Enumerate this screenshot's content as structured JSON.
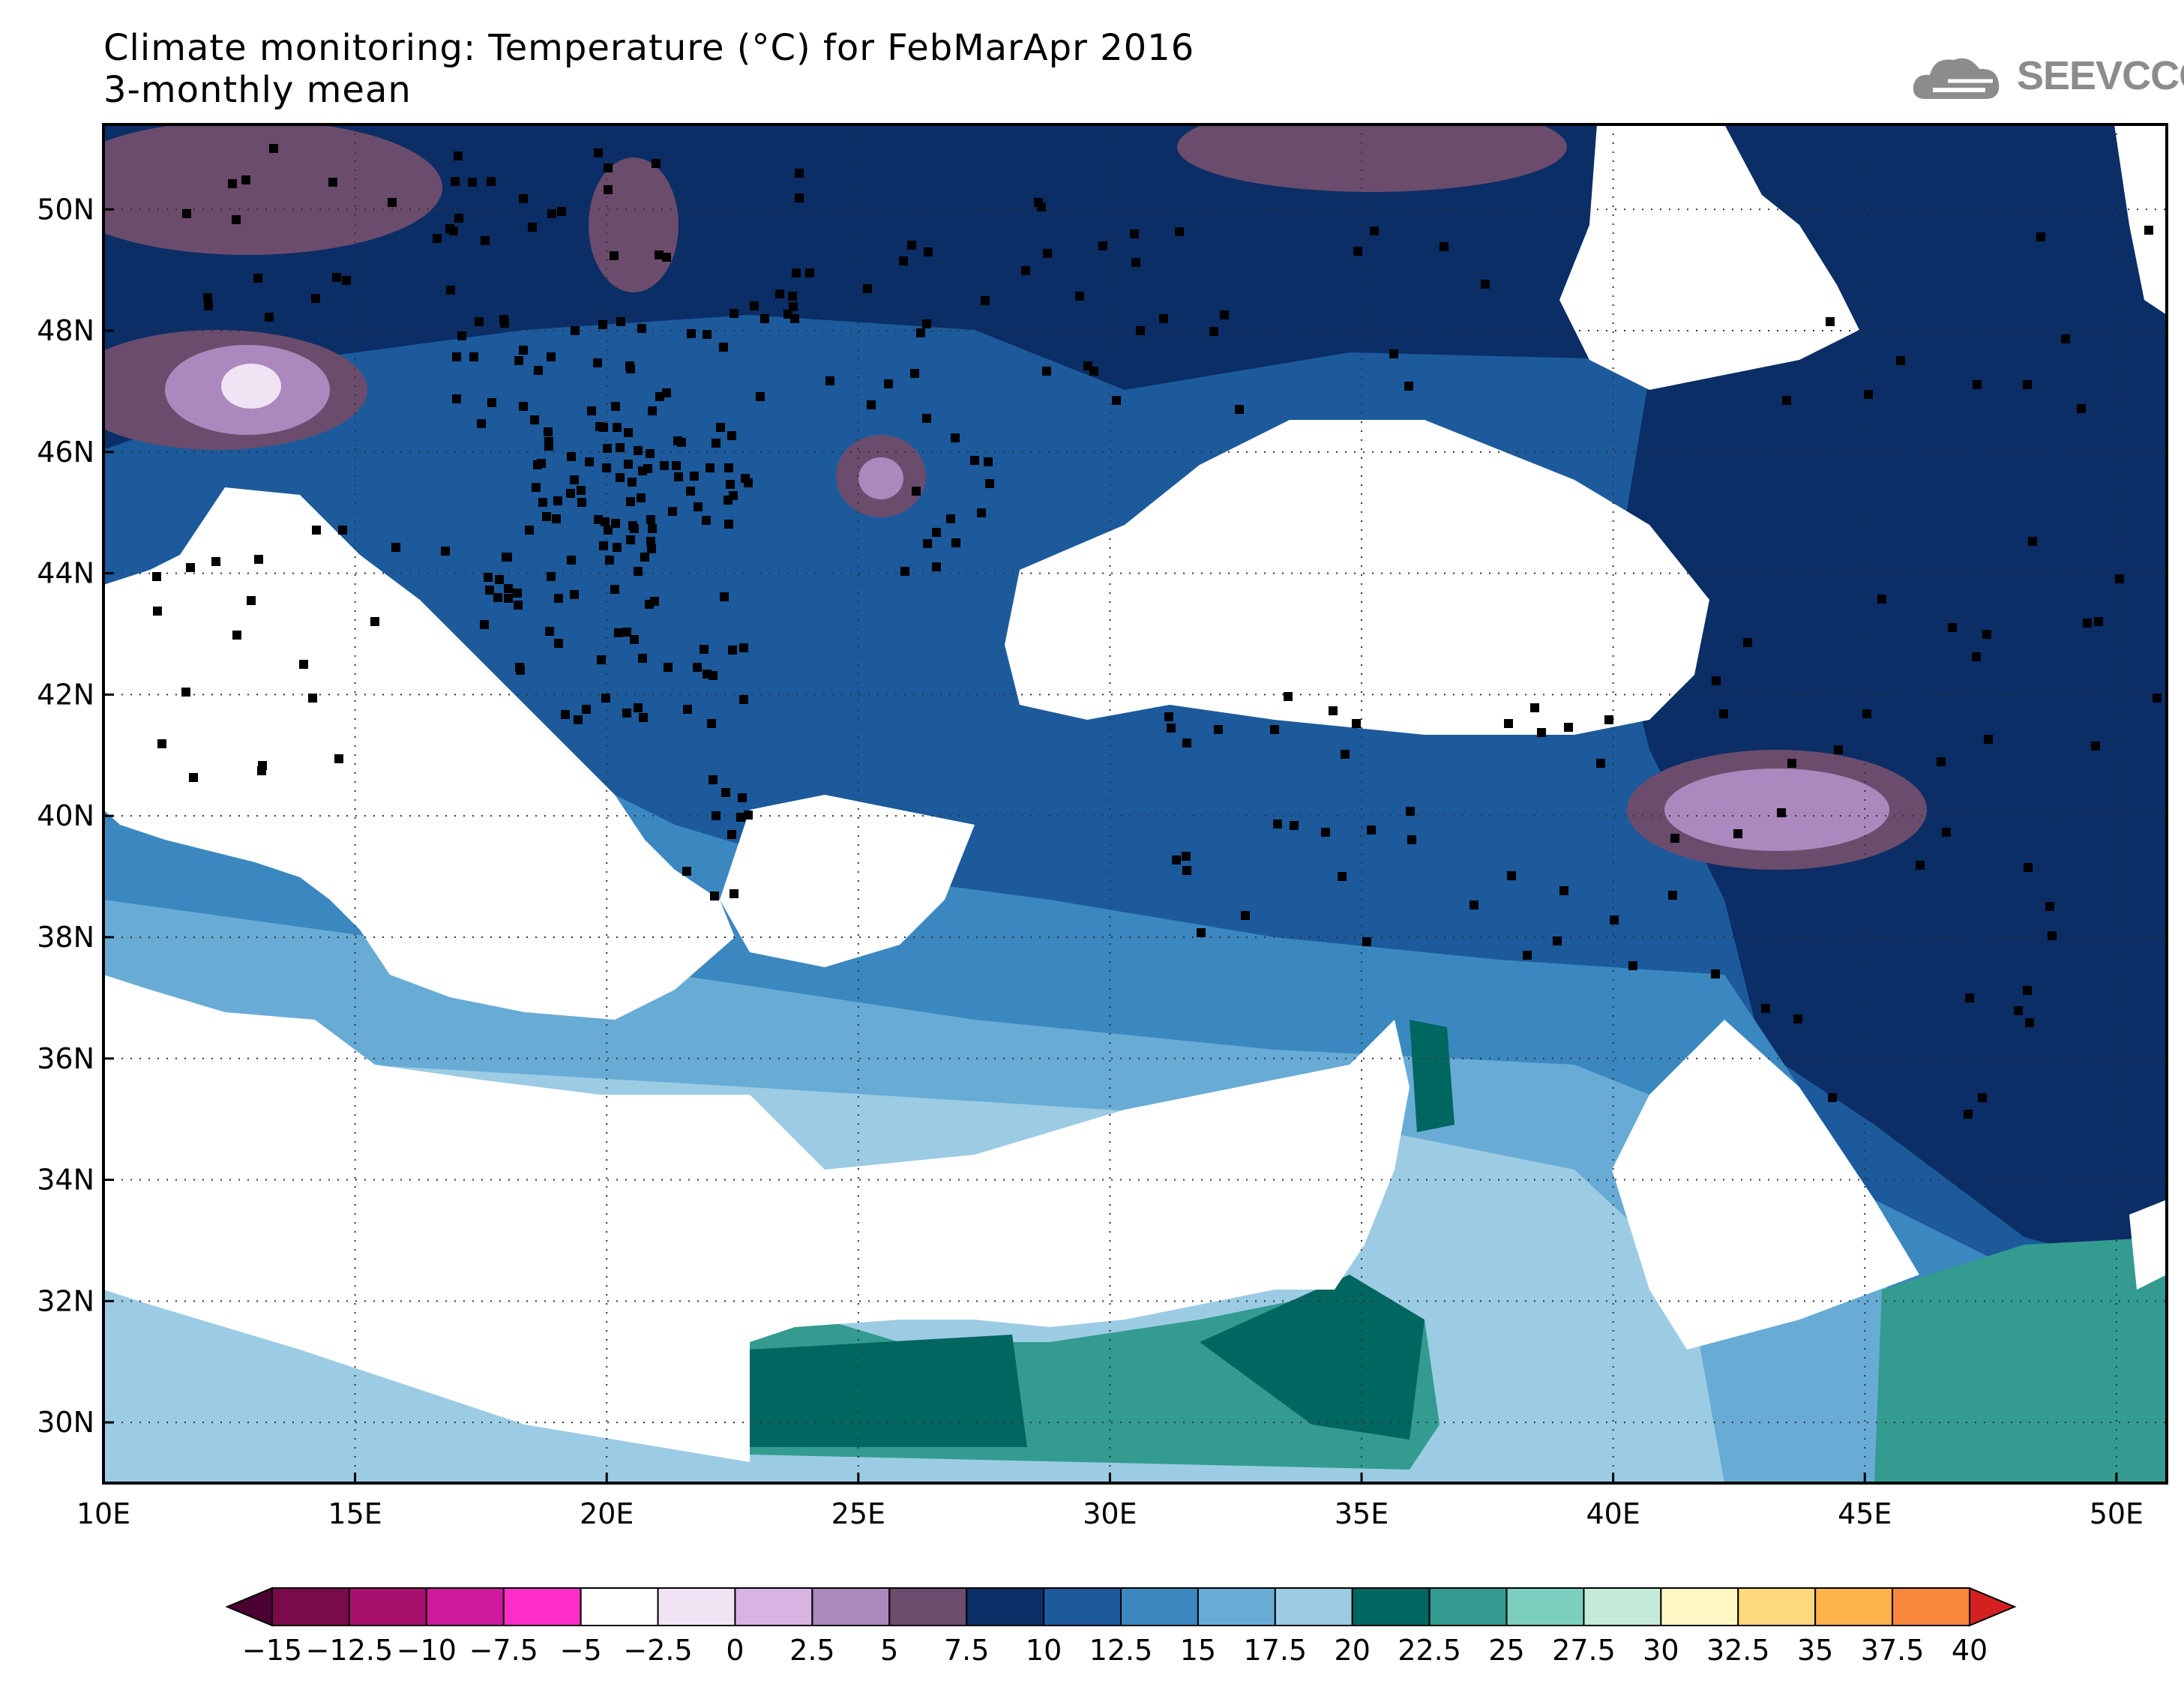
{
  "title": {
    "line1": "Climate monitoring: Temperature (°C) for FebMarApr 2016",
    "line2": "3-monthly mean"
  },
  "logo": {
    "text": "SEEVCCC",
    "icon": "cloud-logo-icon"
  },
  "map": {
    "lat_labels": [
      "30N",
      "32N",
      "34N",
      "36N",
      "38N",
      "40N",
      "42N",
      "44N",
      "46N",
      "48N",
      "50N"
    ],
    "lon_labels": [
      "10E",
      "15E",
      "20E",
      "25E",
      "30E",
      "35E",
      "40E",
      "45E",
      "50E"
    ],
    "lon_range": [
      10,
      51
    ],
    "lat_range": [
      29,
      51.4
    ],
    "grid": "dotted",
    "station_markers": "black squares"
  },
  "colorbar": {
    "labels": [
      "−15",
      "−12.5",
      "−10",
      "−7.5",
      "−5",
      "−2.5",
      "0",
      "2.5",
      "5",
      "7.5",
      "10",
      "12.5",
      "15",
      "17.5",
      "20",
      "22.5",
      "25",
      "27.5",
      "30",
      "32.5",
      "35",
      "37.5",
      "40"
    ],
    "colors": [
      "#7a0a4a",
      "#a8106e",
      "#cf1aa0",
      "#ff2ec8",
      "#ffffff",
      "#f0e4f4",
      "#d8b4e2",
      "#ab88be",
      "#6b4c6c",
      "#0b2e66",
      "#1c5a9c",
      "#3b88c0",
      "#68acd6",
      "#9ccce4",
      "#006660",
      "#339b90",
      "#7ccfbe",
      "#c4ead8",
      "#fff8c4",
      "#fed87c",
      "#fdb24c",
      "#f8883c",
      "#f0502c"
    ],
    "under_color": "#4a0030",
    "over_color": "#d42020",
    "units": "°C"
  }
}
